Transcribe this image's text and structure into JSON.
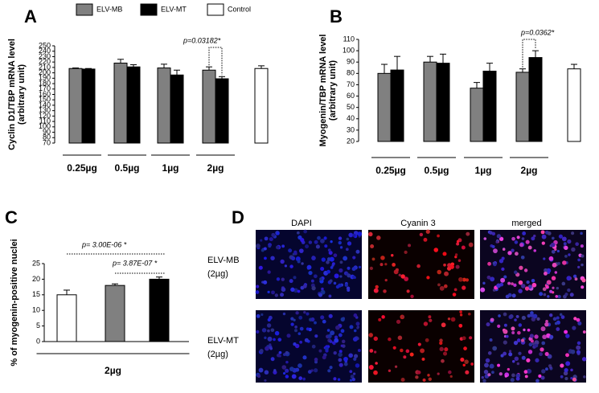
{
  "legend_title": null,
  "chart_data": [
    {
      "type": "bar",
      "label": "A",
      "ylabel": [
        "Cyclin D1/TBP mRNA level",
        "(arbitrary unit)"
      ],
      "categories": [
        "0.25µg",
        "0.5µg",
        "1µg",
        "2µg",
        null
      ],
      "series": [
        {
          "name": "ELV-MB",
          "color": "#808080",
          "values": [
            208,
            218,
            209,
            205,
            null
          ],
          "errors": [
            1,
            7,
            7,
            6,
            null
          ]
        },
        {
          "name": "ELV-MT",
          "color": "#000000",
          "values": [
            207,
            211,
            196,
            189,
            null
          ],
          "errors": [
            1,
            4,
            9,
            4,
            null
          ]
        },
        {
          "name": "Control",
          "color": "#ffffff",
          "values": [
            null,
            null,
            null,
            null,
            208
          ],
          "errors": [
            null,
            null,
            null,
            null,
            5
          ]
        }
      ],
      "annotations": [
        "p=0.03182*"
      ],
      "ylim": [
        70,
        250
      ],
      "yticks": [
        70,
        80,
        90,
        100,
        110,
        120,
        130,
        140,
        150,
        160,
        170,
        180,
        190,
        200,
        210,
        220,
        230,
        240,
        250
      ]
    },
    {
      "type": "bar",
      "label": "B",
      "ylabel": [
        "Myogenin/TBP mRNA level",
        "(arbitrary unit)"
      ],
      "categories": [
        "0.25µg",
        "0.5µg",
        "1µg",
        "2µg",
        null
      ],
      "series": [
        {
          "name": "ELV-MB",
          "color": "#808080",
          "values": [
            80,
            90,
            67,
            81,
            null
          ],
          "errors": [
            8,
            5,
            5,
            3,
            null
          ]
        },
        {
          "name": "ELV-MT",
          "color": "#000000",
          "values": [
            83,
            89,
            82,
            94,
            null
          ],
          "errors": [
            12,
            8,
            7,
            6,
            null
          ]
        },
        {
          "name": "Control",
          "color": "#ffffff",
          "values": [
            null,
            null,
            null,
            null,
            84
          ],
          "errors": [
            null,
            null,
            null,
            null,
            4
          ]
        }
      ],
      "annotations": [
        "p=0.0362*"
      ],
      "ylim": [
        20,
        110
      ],
      "yticks": [
        20,
        30,
        40,
        50,
        60,
        70,
        80,
        90,
        100,
        110
      ]
    },
    {
      "type": "bar",
      "label": "C",
      "ylabel": [
        "% of myogenin-positive nuclei"
      ],
      "categories": [
        "2µg"
      ],
      "series": [
        {
          "name": "Control",
          "color": "#ffffff",
          "values": [
            15
          ],
          "errors": [
            1.5
          ]
        },
        {
          "name": "ELV-MB",
          "color": "#808080",
          "values": [
            18
          ],
          "errors": [
            0.5
          ]
        },
        {
          "name": "ELV-MT",
          "color": "#000000",
          "values": [
            20
          ],
          "errors": [
            0.7
          ]
        }
      ],
      "annotations": [
        "p= 3.00E-06 *",
        "p= 3.87E-07 *"
      ],
      "ylim": [
        0,
        25
      ],
      "yticks": [
        0,
        5,
        10,
        15,
        20,
        25
      ]
    }
  ],
  "micrograph": {
    "label": "D",
    "columns": [
      "DAPI",
      "Cyanin 3",
      "merged"
    ],
    "rows": [
      [
        "ELV-MB",
        "(2µg)"
      ],
      [
        "ELV-MT",
        "(2µg)"
      ]
    ]
  }
}
